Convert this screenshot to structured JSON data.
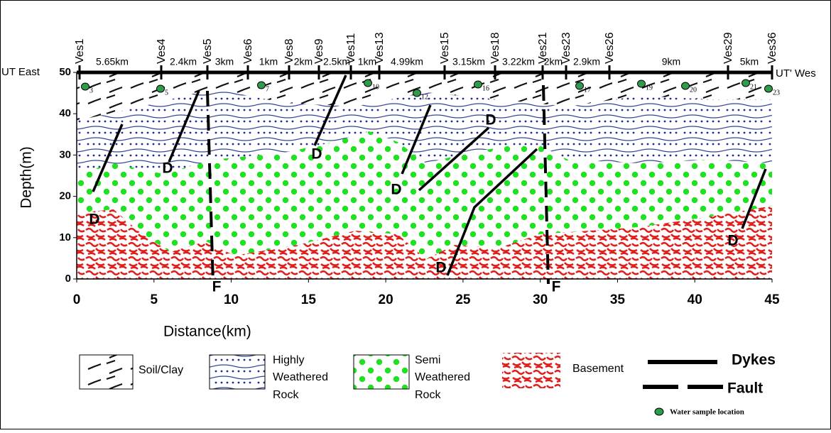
{
  "profile": {
    "start_label": "UT East",
    "end_label": "UT' Wes",
    "stations": [
      "Ves1",
      "Ves4",
      "Ves5",
      "Ves6",
      "Ves8",
      "Ves9",
      "Ves11",
      "Ves13",
      "Ves15",
      "Ves18",
      "Ves21",
      "Ves23",
      "Ves26",
      "Ves29",
      "Ves36"
    ],
    "spacings": [
      "5.65km",
      "2.4km",
      "3km",
      "1km",
      "2km",
      "2.5km",
      "1km",
      "4.99km",
      "3.15km",
      "3.22km",
      "2km",
      "2.9km",
      "9km",
      "5km"
    ],
    "samples": [
      3,
      5,
      7,
      10,
      12,
      16,
      17,
      19,
      20,
      21,
      23
    ]
  },
  "annotations": {
    "dykes": [
      "D",
      "D",
      "D",
      "D",
      "D",
      "D",
      "D"
    ],
    "faults": [
      "F",
      "F"
    ]
  },
  "axes": {
    "x_label": "Distance(km)",
    "y_label": "Depth(m)",
    "x_ticks": [
      0,
      5,
      10,
      15,
      20,
      25,
      30,
      35,
      40,
      45
    ],
    "y_ticks": [
      0,
      10,
      20,
      30,
      40,
      50
    ]
  },
  "legend": {
    "soil": "Soil/Clay",
    "highly": [
      "Highly",
      "Weathered",
      "Rock"
    ],
    "semi": [
      "Semi",
      "Weathered",
      "Rock"
    ],
    "basement": "Basement",
    "dykes": "Dykes",
    "fault": "Fault",
    "water": "Water sample location"
  }
}
